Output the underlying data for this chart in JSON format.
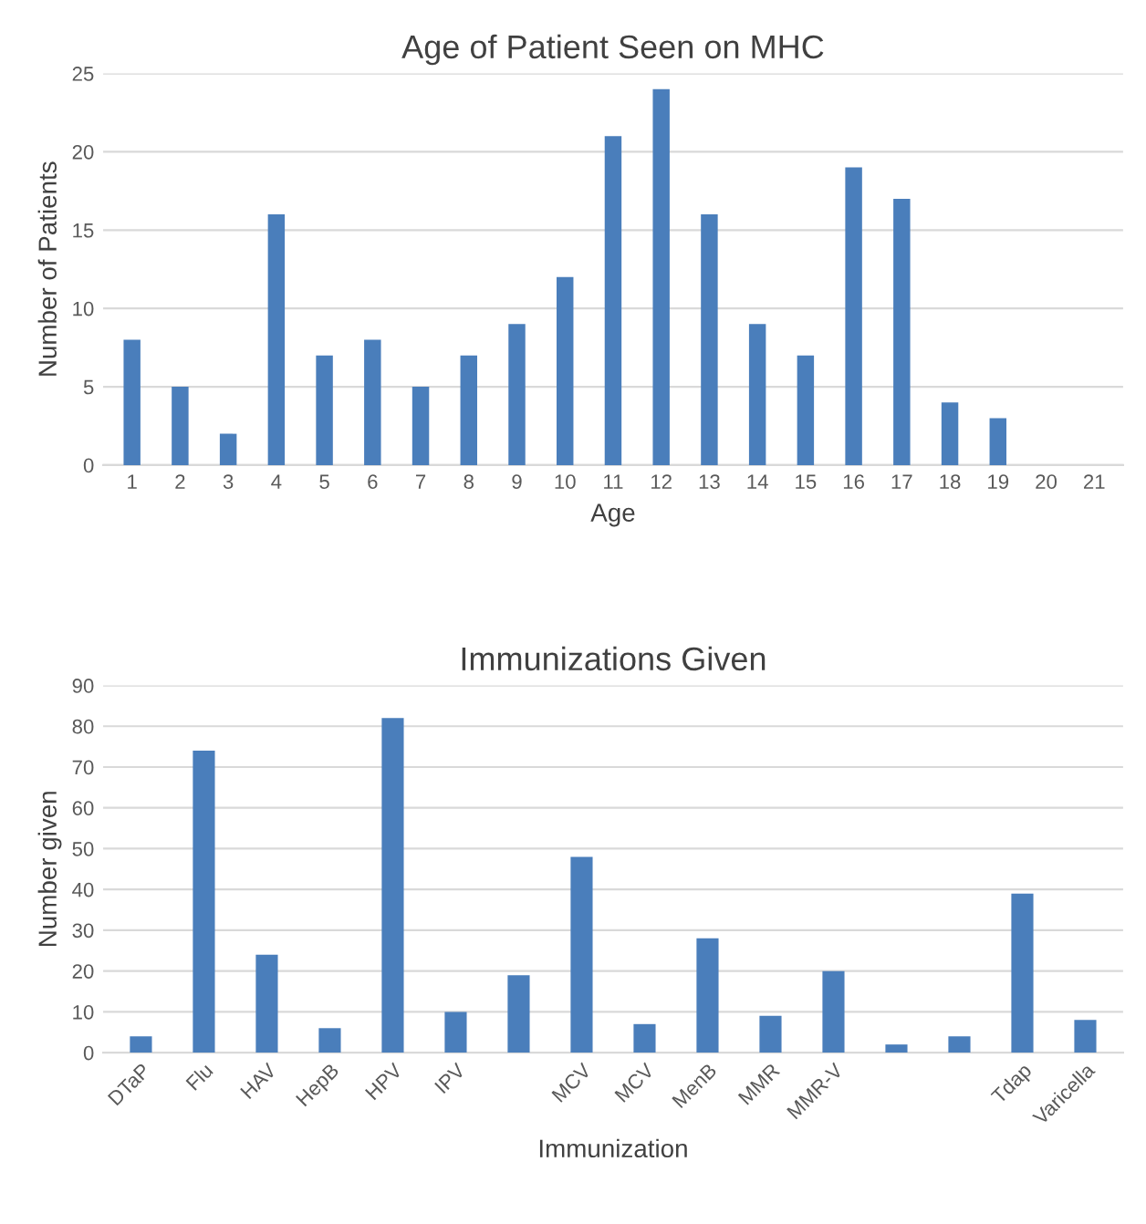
{
  "chart_data": [
    {
      "type": "bar",
      "title": "Age of Patient Seen on MHC",
      "xlabel": "Age",
      "ylabel": "Number of Patients",
      "categories": [
        "1",
        "2",
        "3",
        "4",
        "5",
        "6",
        "7",
        "8",
        "9",
        "10",
        "11",
        "12",
        "13",
        "14",
        "15",
        "16",
        "17",
        "18",
        "19",
        "20",
        "21"
      ],
      "values": [
        8,
        5,
        2,
        16,
        7,
        8,
        5,
        7,
        9,
        12,
        21,
        24,
        16,
        9,
        7,
        19,
        17,
        4,
        3,
        0,
        0
      ],
      "color": "#4a7ebb",
      "ylim": [
        0,
        25
      ],
      "yticks": [
        0,
        5,
        10,
        15,
        20,
        25
      ],
      "grid": "y",
      "legend": false
    },
    {
      "type": "bar",
      "title": "Immunizations Given",
      "xlabel": "Immunization",
      "ylabel": "Number given",
      "categories": [
        "DTaP",
        "Flu",
        "HAV",
        "HepB",
        "HPV",
        "IPV",
        null,
        "MCV",
        "MCV",
        "MenB",
        "MMR",
        "MMR-V",
        null,
        null,
        "Tdap",
        "Varicella"
      ],
      "values": [
        4,
        74,
        24,
        6,
        82,
        10,
        19,
        48,
        7,
        28,
        9,
        20,
        2,
        4,
        39,
        8
      ],
      "color": "#4a7ebb",
      "ylim": [
        0,
        90
      ],
      "yticks": [
        0,
        10,
        20,
        30,
        40,
        50,
        60,
        70,
        80,
        90
      ],
      "grid": "y",
      "legend": false
    }
  ]
}
